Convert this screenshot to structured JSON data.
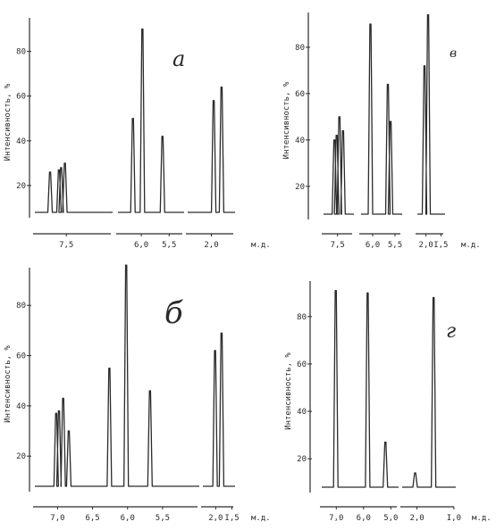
{
  "chart_data": [
    {
      "type": "line",
      "panel_label": "а",
      "ylabel": "Интенсивность, %",
      "xlabel": "м.д.",
      "yticks": [
        20,
        40,
        60,
        80
      ],
      "ylim": [
        0,
        95
      ],
      "segments": [
        {
          "xlim": [
            7.95,
            6.85
          ],
          "xticks": [
            {
              "v": 7.5,
              "t": "7,5"
            }
          ]
        },
        {
          "xlim": [
            6.45,
            5.2
          ],
          "xticks": [
            {
              "v": 6.0,
              "t": "6,0"
            },
            {
              "v": 5.5,
              "t": "5,5"
            }
          ]
        },
        {
          "xlim": [
            2.55,
            1.45
          ],
          "xticks": [
            {
              "v": 2.0,
              "t": "2,0"
            }
          ]
        }
      ],
      "peaks": [
        {
          "x": 7.72,
          "y": 26
        },
        {
          "x": 7.6,
          "y": 27
        },
        {
          "x": 7.57,
          "y": 28
        },
        {
          "x": 7.52,
          "y": 30
        },
        {
          "x": 6.15,
          "y": 50
        },
        {
          "x": 5.98,
          "y": 90
        },
        {
          "x": 5.62,
          "y": 42
        },
        {
          "x": 1.95,
          "y": 58
        },
        {
          "x": 1.78,
          "y": 64
        }
      ]
    },
    {
      "type": "line",
      "panel_label": "в",
      "ylabel": "Интенсивность, %",
      "xlabel": "м.д.",
      "yticks": [
        20,
        40,
        60,
        80
      ],
      "ylim": [
        0,
        95
      ],
      "segments": [
        {
          "xlim": [
            7.85,
            7.1
          ],
          "xticks": [
            {
              "v": 7.5,
              "t": "7,5"
            }
          ]
        },
        {
          "xlim": [
            6.3,
            5.3
          ],
          "xticks": [
            {
              "v": 6.0,
              "t": "6,0"
            },
            {
              "v": 5.5,
              "t": "5,5"
            }
          ]
        },
        {
          "xlim": [
            2.35,
            1.3
          ],
          "xticks": [
            {
              "v": 2.0,
              "t": "2,0"
            },
            {
              "v": 1.5,
              "t": "I,5"
            }
          ]
        }
      ],
      "peaks": [
        {
          "x": 7.57,
          "y": 40
        },
        {
          "x": 7.52,
          "y": 42
        },
        {
          "x": 7.46,
          "y": 50
        },
        {
          "x": 7.38,
          "y": 44
        },
        {
          "x": 6.05,
          "y": 90
        },
        {
          "x": 5.66,
          "y": 64
        },
        {
          "x": 5.6,
          "y": 48
        },
        {
          "x": 2.05,
          "y": 72
        },
        {
          "x": 1.93,
          "y": 94
        }
      ]
    },
    {
      "type": "line",
      "panel_label": "б",
      "ylabel": "Интенсивность, %",
      "xlabel": "м.д.",
      "yticks": [
        20,
        40,
        60,
        80
      ],
      "ylim": [
        0,
        95
      ],
      "segments": [
        {
          "xlim": [
            7.35,
            4.95
          ],
          "xticks": [
            {
              "v": 7.0,
              "t": "7,0"
            },
            {
              "v": 6.5,
              "t": "6,5"
            },
            {
              "v": 6.0,
              "t": "6,0"
            },
            {
              "v": 5.5,
              "t": "5,5"
            }
          ]
        },
        {
          "xlim": [
            2.45,
            1.35
          ],
          "xticks": [
            {
              "v": 2.0,
              "t": "2,0"
            },
            {
              "v": 1.5,
              "t": "I,5"
            }
          ]
        }
      ],
      "peaks": [
        {
          "x": 7.02,
          "y": 37
        },
        {
          "x": 6.98,
          "y": 38
        },
        {
          "x": 6.92,
          "y": 43
        },
        {
          "x": 6.84,
          "y": 30
        },
        {
          "x": 6.26,
          "y": 55
        },
        {
          "x": 6.02,
          "y": 96
        },
        {
          "x": 5.68,
          "y": 46
        },
        {
          "x": 2.02,
          "y": 62
        },
        {
          "x": 1.82,
          "y": 69
        }
      ]
    },
    {
      "type": "line",
      "panel_label": "г",
      "ylabel": "Интенсивность, %",
      "xlabel": "м.д.",
      "yticks": [
        20,
        40,
        60,
        80
      ],
      "ylim": [
        0,
        95
      ],
      "segments": [
        {
          "xlim": [
            7.6,
            4.65
          ],
          "xticks": [
            {
              "v": 7.0,
              "t": "7,0"
            },
            {
              "v": 6.0,
              "t": "6,0"
            },
            {
              "v": 5.0,
              "t": "5,0"
            }
          ]
        },
        {
          "xlim": [
            2.45,
            0.9
          ],
          "xticks": [
            {
              "v": 2.0,
              "t": "2,0"
            },
            {
              "v": 1.0,
              "t": "I,0"
            }
          ]
        }
      ],
      "peaks": [
        {
          "x": 7.02,
          "y": 91
        },
        {
          "x": 5.85,
          "y": 90
        },
        {
          "x": 5.2,
          "y": 27
        },
        {
          "x": 2.05,
          "y": 14
        },
        {
          "x": 1.55,
          "y": 88
        }
      ]
    }
  ]
}
